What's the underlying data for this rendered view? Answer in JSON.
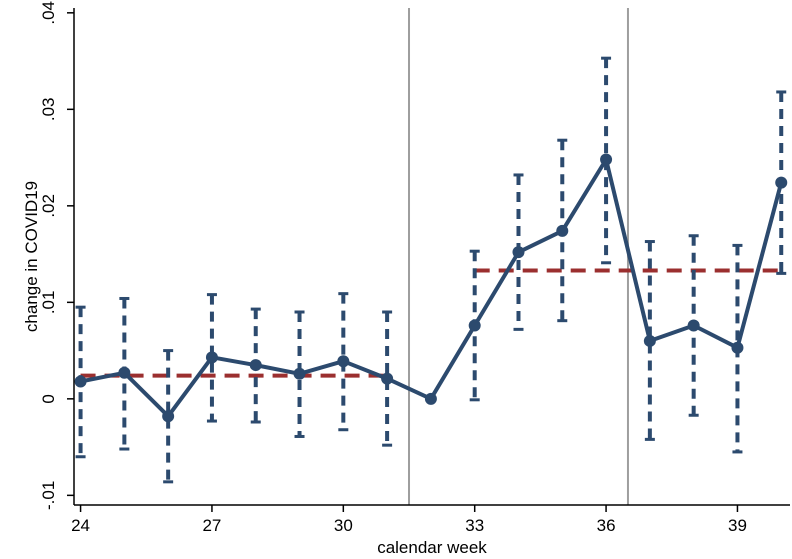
{
  "chart_data": {
    "type": "line",
    "xlabel": "calendar week",
    "ylabel": "change in COVID19",
    "xlim": [
      23.85,
      40.2
    ],
    "ylim": [
      -0.011,
      0.0405
    ],
    "x_ticks": [
      24,
      27,
      30,
      33,
      36,
      39
    ],
    "y_ticks": [
      -0.01,
      0,
      0.01,
      0.02,
      0.03,
      0.04
    ],
    "y_tick_labels": [
      "-.01",
      "0",
      ".01",
      ".02",
      ".03",
      ".04"
    ],
    "grid": false,
    "legend": "none",
    "colors": {
      "series": "#2c4a6e",
      "reference": "#9b2f2f",
      "vertical_lines": "#9e9e9e",
      "axis": "#000000"
    },
    "vertical_lines_x": [
      31.5,
      36.5
    ],
    "series": [
      {
        "x": [
          24,
          25,
          26,
          27,
          28,
          29,
          30,
          31,
          32,
          33,
          34,
          35,
          36,
          37,
          38,
          39,
          40
        ],
        "values": [
          0.0018,
          0.0027,
          -0.0018,
          0.0043,
          0.0035,
          0.0026,
          0.0039,
          0.0021,
          0.0,
          0.0076,
          0.0152,
          0.0174,
          0.0248,
          0.006,
          0.0076,
          0.0053,
          0.0224
        ],
        "ci_low": [
          -0.006,
          -0.0052,
          -0.0086,
          -0.0023,
          -0.0024,
          -0.0039,
          -0.0032,
          -0.0048,
          null,
          -0.0001,
          0.0072,
          0.0081,
          0.0141,
          -0.0042,
          -0.0017,
          -0.0055,
          0.013
        ],
        "ci_high": [
          0.0095,
          0.0104,
          0.005,
          0.0108,
          0.0093,
          0.009,
          0.0109,
          0.009,
          null,
          0.0153,
          0.0232,
          0.0268,
          0.0353,
          0.0163,
          0.0169,
          0.0159,
          0.0318
        ]
      }
    ],
    "reference_segments": [
      {
        "x_start": 24,
        "x_end": 31,
        "value": 0.0024
      },
      {
        "x_start": 33,
        "x_end": 40,
        "value": 0.0133
      }
    ]
  }
}
